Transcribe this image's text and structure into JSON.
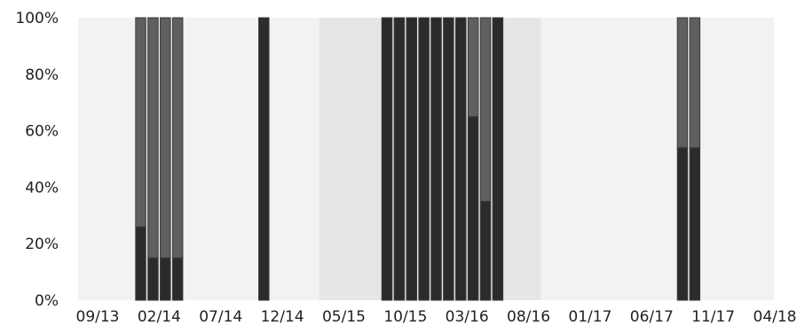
{
  "chart_data": {
    "type": "bar",
    "stacked": true,
    "title": "",
    "xlabel": "",
    "ylabel": "",
    "ylim": [
      0,
      100
    ],
    "y_ticks": [
      "0%",
      "20%",
      "40%",
      "60%",
      "80%",
      "100%"
    ],
    "x_ticks": [
      "09/13",
      "02/14",
      "07/14",
      "12/14",
      "05/15",
      "10/15",
      "03/16",
      "08/16",
      "01/17",
      "06/17",
      "11/17",
      "04/18"
    ],
    "x_tick_dates": [
      "2013-09",
      "2014-02",
      "2014-07",
      "2014-12",
      "2015-05",
      "2015-10",
      "2016-03",
      "2016-08",
      "2017-01",
      "2017-06",
      "2017-11",
      "2018-04"
    ],
    "grid": false,
    "legend": "none",
    "colors": {
      "plot_background": "#f2f2f2",
      "shaded_band": "#e6e6e6",
      "bottom_segment": "#2b2b2b",
      "top_segment": "#5f5f5f",
      "bar_outline": "#3a3a3a",
      "tick_text": "#222222"
    },
    "shaded_bands": [
      {
        "start": "2015-03",
        "end": "2016-09"
      }
    ],
    "series": [
      {
        "values": [
          26,
          15,
          15,
          15,
          100,
          100,
          100,
          100,
          100,
          100,
          100,
          100,
          65,
          35,
          100,
          54,
          54
        ]
      },
      {
        "values": [
          74,
          85,
          85,
          85,
          0,
          0,
          0,
          0,
          0,
          0,
          0,
          0,
          35,
          65,
          0,
          46,
          46
        ]
      }
    ],
    "x": [
      "2013-12",
      "2014-01",
      "2014-02",
      "2014-03",
      "2014-10",
      "2015-08",
      "2015-09",
      "2015-10",
      "2015-11",
      "2015-12",
      "2016-01",
      "2016-02",
      "2016-03",
      "2016-04",
      "2016-05",
      "2017-08",
      "2017-09"
    ]
  }
}
